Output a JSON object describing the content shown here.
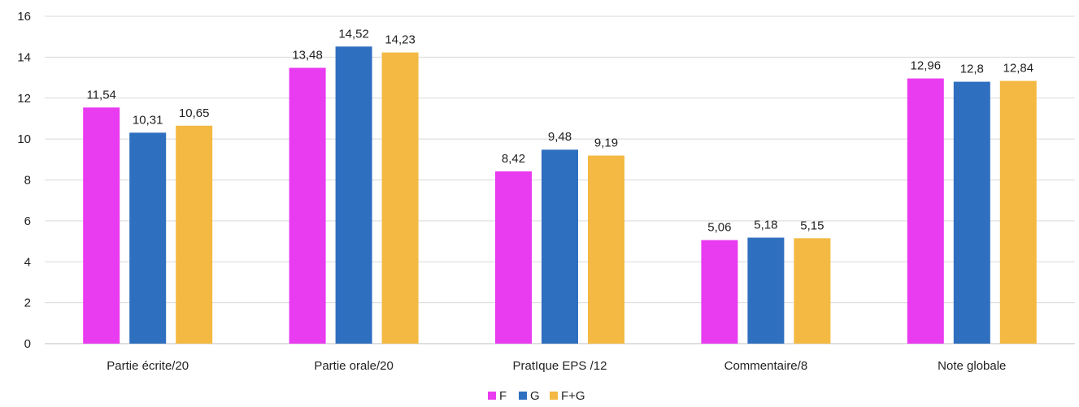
{
  "chart_data": {
    "type": "bar",
    "categories": [
      "Partie écrite/20",
      "Partie orale/20",
      "PratIque EPS /12",
      "Commentaire/8",
      "Note globale"
    ],
    "series": [
      {
        "name": "F",
        "color": "#e93bf0",
        "values": [
          11.54,
          13.48,
          8.42,
          5.06,
          12.96
        ],
        "labels": [
          "11,54",
          "13,48",
          "8,42",
          "5,06",
          "12,96"
        ]
      },
      {
        "name": "G",
        "color": "#2f6fbf",
        "values": [
          10.31,
          14.52,
          9.48,
          5.18,
          12.8
        ],
        "labels": [
          "10,31",
          "14,52",
          "9,48",
          "5,18",
          "12,8"
        ]
      },
      {
        "name": "F+G",
        "color": "#f3b942",
        "values": [
          10.65,
          14.23,
          9.19,
          5.15,
          12.84
        ],
        "labels": [
          "10,65",
          "14,23",
          "9,19",
          "5,15",
          "12,84"
        ]
      }
    ],
    "ylim": [
      0,
      16
    ],
    "yticks": [
      "0",
      "2",
      "4",
      "6",
      "8",
      "10",
      "12",
      "14",
      "16"
    ],
    "grid": true,
    "legend_position": "bottom-center",
    "title": "",
    "xlabel": "",
    "ylabel": ""
  }
}
